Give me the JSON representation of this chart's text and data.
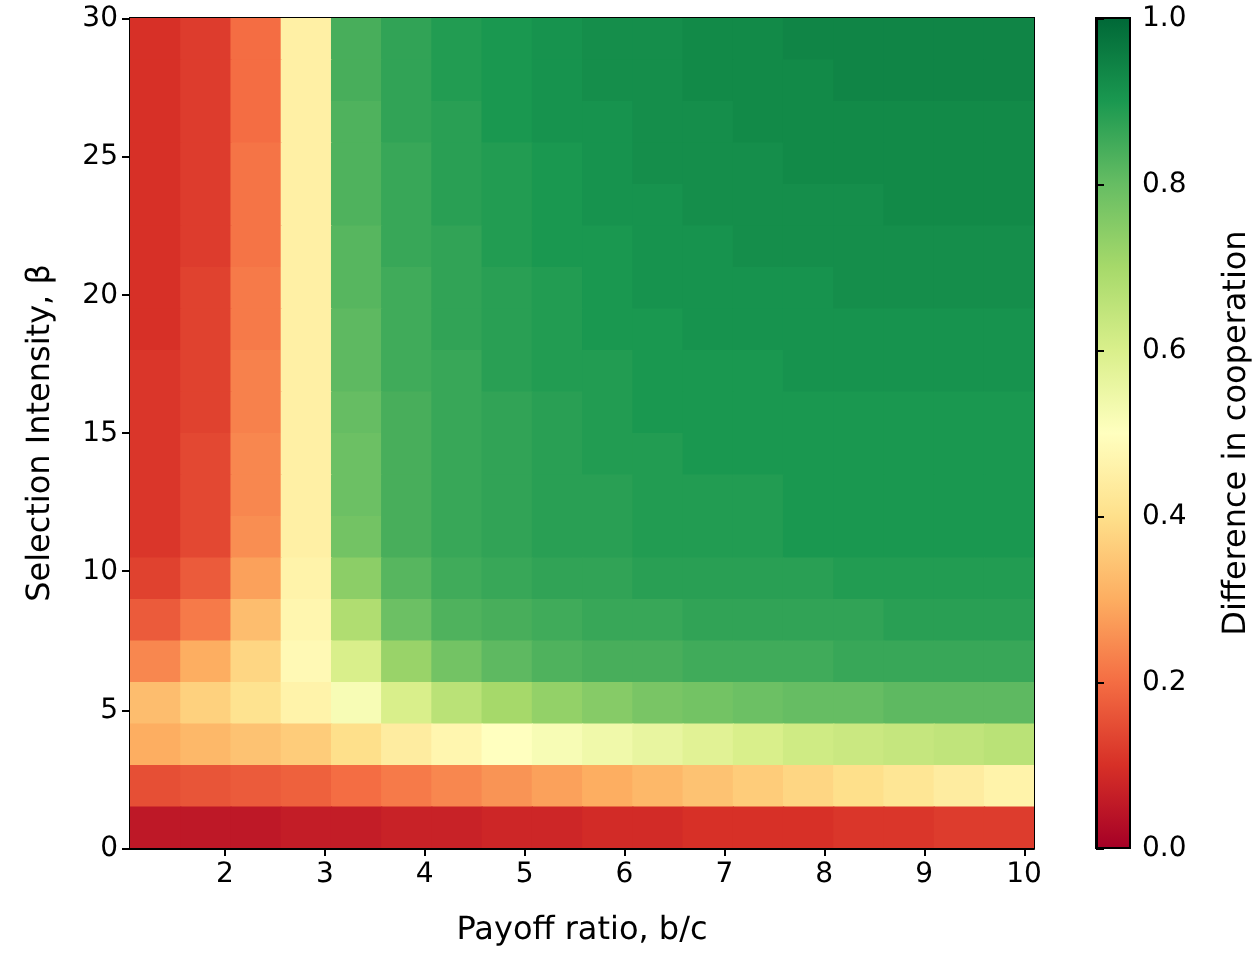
{
  "chart_data": {
    "type": "heatmap",
    "xlabel": "Payoff ratio, b/c",
    "ylabel": "Selection Intensity, β",
    "clabel": "Difference in cooperation",
    "xlim": [
      1.05,
      10.1
    ],
    "xticks": [
      2,
      3,
      4,
      5,
      6,
      7,
      8,
      9,
      10
    ],
    "ylim": [
      0,
      30
    ],
    "yticks": [
      0,
      5,
      10,
      15,
      20,
      25,
      30
    ],
    "clim": [
      0,
      1
    ],
    "cticks": [
      {
        "value": 0,
        "label": "0.0"
      },
      0.2,
      0.4,
      0.6,
      0.8,
      {
        "value": 1,
        "label": "1.0"
      }
    ],
    "x": [
      1.301,
      1.804,
      2.307,
      2.81,
      3.313,
      3.815,
      4.318,
      4.821,
      5.324,
      5.827,
      6.33,
      6.833,
      7.336,
      7.838,
      8.341,
      8.844,
      9.347,
      9.85
    ],
    "y": [
      29.25,
      27.75,
      26.25,
      24.75,
      23.25,
      21.75,
      20.25,
      18.75,
      17.25,
      15.75,
      14.25,
      12.75,
      11.25,
      9.75,
      8.25,
      6.75,
      5.25,
      3.75,
      2.25,
      0.75
    ],
    "cells": [
      [
        0.1,
        0.12,
        0.2,
        0.45,
        0.84,
        0.87,
        0.89,
        0.9,
        0.91,
        0.92,
        0.92,
        0.93,
        0.93,
        0.94,
        0.94,
        0.94,
        0.94,
        0.94
      ],
      [
        0.1,
        0.12,
        0.2,
        0.45,
        0.84,
        0.87,
        0.89,
        0.9,
        0.91,
        0.92,
        0.92,
        0.93,
        0.93,
        0.93,
        0.94,
        0.94,
        0.94,
        0.94
      ],
      [
        0.1,
        0.12,
        0.2,
        0.45,
        0.83,
        0.87,
        0.88,
        0.9,
        0.91,
        0.91,
        0.92,
        0.92,
        0.93,
        0.93,
        0.93,
        0.93,
        0.93,
        0.93
      ],
      [
        0.1,
        0.12,
        0.21,
        0.45,
        0.83,
        0.86,
        0.88,
        0.89,
        0.9,
        0.91,
        0.92,
        0.92,
        0.92,
        0.93,
        0.93,
        0.93,
        0.93,
        0.93
      ],
      [
        0.1,
        0.12,
        0.21,
        0.45,
        0.83,
        0.86,
        0.88,
        0.89,
        0.9,
        0.91,
        0.91,
        0.92,
        0.92,
        0.92,
        0.92,
        0.93,
        0.93,
        0.93
      ],
      [
        0.1,
        0.12,
        0.21,
        0.45,
        0.82,
        0.86,
        0.87,
        0.89,
        0.9,
        0.9,
        0.91,
        0.91,
        0.92,
        0.92,
        0.92,
        0.92,
        0.92,
        0.92
      ],
      [
        0.1,
        0.13,
        0.22,
        0.45,
        0.82,
        0.85,
        0.87,
        0.88,
        0.89,
        0.9,
        0.91,
        0.91,
        0.91,
        0.91,
        0.92,
        0.92,
        0.92,
        0.92
      ],
      [
        0.1,
        0.13,
        0.22,
        0.45,
        0.81,
        0.85,
        0.87,
        0.88,
        0.89,
        0.9,
        0.9,
        0.91,
        0.91,
        0.91,
        0.91,
        0.91,
        0.91,
        0.91
      ],
      [
        0.11,
        0.13,
        0.23,
        0.45,
        0.81,
        0.85,
        0.86,
        0.88,
        0.89,
        0.89,
        0.9,
        0.9,
        0.9,
        0.91,
        0.91,
        0.91,
        0.91,
        0.91
      ],
      [
        0.11,
        0.13,
        0.23,
        0.45,
        0.8,
        0.84,
        0.86,
        0.87,
        0.88,
        0.89,
        0.9,
        0.9,
        0.9,
        0.9,
        0.9,
        0.9,
        0.9,
        0.9
      ],
      [
        0.11,
        0.14,
        0.24,
        0.45,
        0.79,
        0.84,
        0.86,
        0.87,
        0.88,
        0.89,
        0.89,
        0.9,
        0.9,
        0.9,
        0.9,
        0.9,
        0.9,
        0.9
      ],
      [
        0.11,
        0.14,
        0.24,
        0.45,
        0.79,
        0.84,
        0.86,
        0.87,
        0.88,
        0.88,
        0.89,
        0.89,
        0.89,
        0.9,
        0.9,
        0.9,
        0.9,
        0.9
      ],
      [
        0.11,
        0.14,
        0.25,
        0.45,
        0.78,
        0.84,
        0.86,
        0.87,
        0.88,
        0.88,
        0.89,
        0.89,
        0.89,
        0.9,
        0.9,
        0.9,
        0.9,
        0.9
      ],
      [
        0.13,
        0.17,
        0.28,
        0.46,
        0.74,
        0.82,
        0.85,
        0.86,
        0.87,
        0.87,
        0.88,
        0.88,
        0.88,
        0.88,
        0.89,
        0.89,
        0.89,
        0.89
      ],
      [
        0.17,
        0.22,
        0.33,
        0.47,
        0.68,
        0.79,
        0.83,
        0.84,
        0.85,
        0.86,
        0.86,
        0.87,
        0.87,
        0.87,
        0.87,
        0.88,
        0.88,
        0.88
      ],
      [
        0.24,
        0.3,
        0.38,
        0.48,
        0.6,
        0.72,
        0.78,
        0.81,
        0.83,
        0.84,
        0.84,
        0.85,
        0.85,
        0.85,
        0.86,
        0.86,
        0.86,
        0.86
      ],
      [
        0.33,
        0.37,
        0.41,
        0.46,
        0.52,
        0.6,
        0.66,
        0.7,
        0.73,
        0.75,
        0.77,
        0.78,
        0.79,
        0.8,
        0.8,
        0.81,
        0.81,
        0.81
      ],
      [
        0.3,
        0.32,
        0.34,
        0.36,
        0.4,
        0.44,
        0.47,
        0.5,
        0.52,
        0.54,
        0.56,
        0.58,
        0.6,
        0.62,
        0.63,
        0.64,
        0.65,
        0.66
      ],
      [
        0.15,
        0.16,
        0.17,
        0.18,
        0.2,
        0.22,
        0.24,
        0.26,
        0.28,
        0.3,
        0.32,
        0.34,
        0.36,
        0.38,
        0.4,
        0.42,
        0.44,
        0.46
      ],
      [
        0.05,
        0.05,
        0.05,
        0.06,
        0.06,
        0.07,
        0.07,
        0.08,
        0.08,
        0.09,
        0.09,
        0.1,
        0.1,
        0.1,
        0.11,
        0.11,
        0.12,
        0.12
      ]
    ]
  }
}
